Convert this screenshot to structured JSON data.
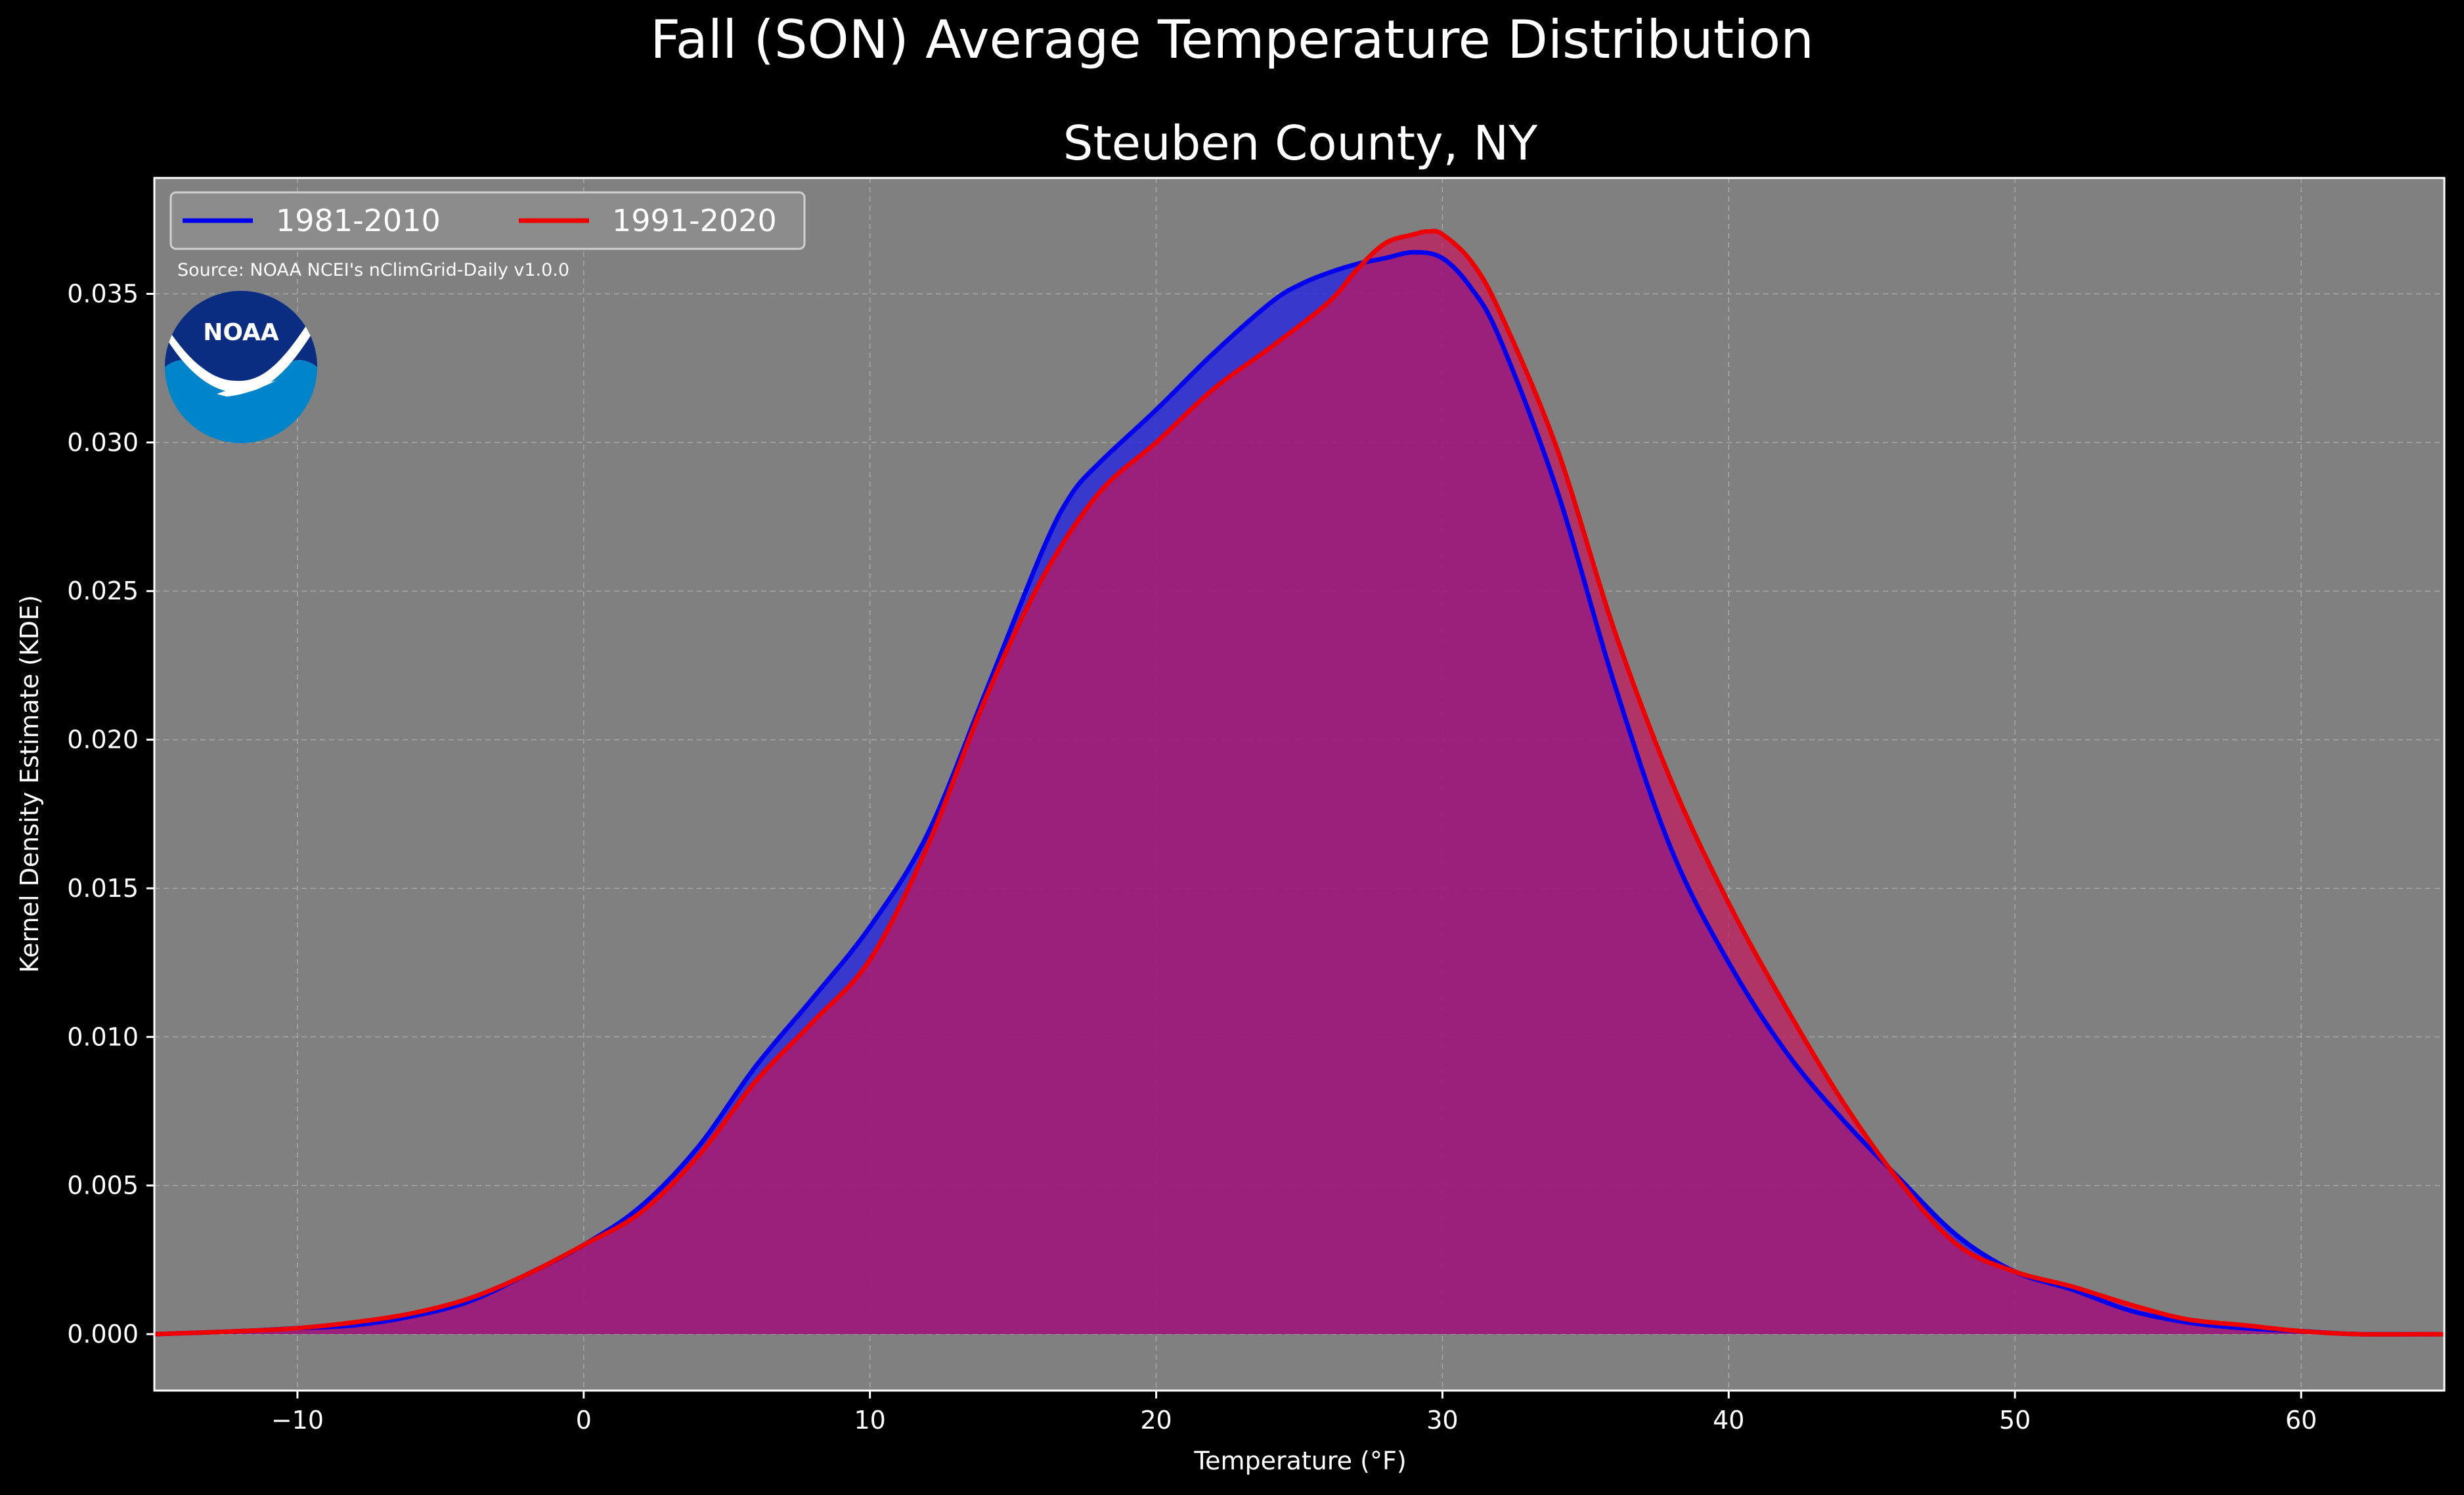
{
  "chart_data": {
    "type": "area",
    "suptitle": "Fall (SON) Average Temperature Distribution",
    "title": "Steuben County, NY",
    "xlabel": "Temperature (°F)",
    "ylabel": "Kernel Density Estimate (KDE)",
    "xlim": [
      -15,
      65
    ],
    "ylim": [
      -0.0019,
      0.0389
    ],
    "x_ticks": [
      -10,
      0,
      10,
      20,
      30,
      40,
      50,
      60
    ],
    "x_tick_labels": [
      "−10",
      "0",
      "10",
      "20",
      "30",
      "40",
      "50",
      "60"
    ],
    "y_ticks": [
      0.0,
      0.005,
      0.01,
      0.015,
      0.02,
      0.025,
      0.03,
      0.035
    ],
    "y_tick_labels": [
      "0.000",
      "0.005",
      "0.010",
      "0.015",
      "0.020",
      "0.025",
      "0.030",
      "0.035"
    ],
    "grid": true,
    "legend_position": "top-left",
    "source": "Source: NOAA NCEI's nClimGrid-Daily v1.0.0",
    "logo_text": "NOAA",
    "colors": {
      "figure_background": "#000000",
      "plot_background": "#808080",
      "text": "#ffffff",
      "series_1981": "#0000ee",
      "series_1991": "#ee0000",
      "fill_1981": "#2b2bdb",
      "fill_1991": "#c2185b",
      "logo_dark": "#0a2d82",
      "logo_light": "#0085ca"
    },
    "series": [
      {
        "name": "1981-2010",
        "color": "#0000ee",
        "x": [
          -15,
          -12,
          -10,
          -8,
          -6,
          -4,
          -2,
          0,
          2,
          4,
          6,
          8,
          10,
          12,
          14,
          16,
          17,
          18,
          20,
          22,
          24,
          25,
          26,
          27,
          28,
          29,
          30,
          31,
          32,
          34,
          36,
          38,
          40,
          42,
          44,
          46,
          48,
          50,
          52,
          54,
          56,
          58,
          60,
          62,
          65
        ],
        "y": [
          0.0,
          0.0001,
          0.0002,
          0.0003,
          0.0006,
          0.0011,
          0.002,
          0.003,
          0.0043,
          0.0063,
          0.009,
          0.0113,
          0.0137,
          0.0168,
          0.0215,
          0.0263,
          0.0282,
          0.0293,
          0.0311,
          0.033,
          0.0347,
          0.0353,
          0.0357,
          0.036,
          0.0362,
          0.0364,
          0.0362,
          0.0352,
          0.0335,
          0.0284,
          0.0219,
          0.0163,
          0.0125,
          0.0095,
          0.0072,
          0.0052,
          0.0033,
          0.0021,
          0.0015,
          0.0008,
          0.0004,
          0.0002,
          0.0001,
          0.0,
          0.0
        ]
      },
      {
        "name": "1991-2020",
        "color": "#ee0000",
        "x": [
          -15,
          -12,
          -10,
          -8,
          -6,
          -4,
          -2,
          0,
          2,
          4,
          6,
          8,
          10,
          12,
          14,
          16,
          18,
          20,
          22,
          24,
          26,
          27,
          28,
          29,
          29.5,
          30,
          31,
          32,
          34,
          36,
          38,
          40,
          42,
          44,
          46,
          48,
          50,
          52,
          54,
          56,
          58,
          60,
          62,
          65
        ],
        "y": [
          0.0,
          0.0001,
          0.0002,
          0.0004,
          0.0007,
          0.0012,
          0.002,
          0.003,
          0.0041,
          0.006,
          0.0085,
          0.0105,
          0.0126,
          0.0164,
          0.0213,
          0.0254,
          0.0283,
          0.03,
          0.0318,
          0.0332,
          0.0347,
          0.0358,
          0.0367,
          0.037,
          0.0371,
          0.037,
          0.0361,
          0.0344,
          0.0298,
          0.0237,
          0.0186,
          0.0145,
          0.011,
          0.0078,
          0.0051,
          0.003,
          0.0021,
          0.0016,
          0.001,
          0.0005,
          0.0003,
          0.0001,
          0.0,
          0.0
        ]
      }
    ]
  }
}
